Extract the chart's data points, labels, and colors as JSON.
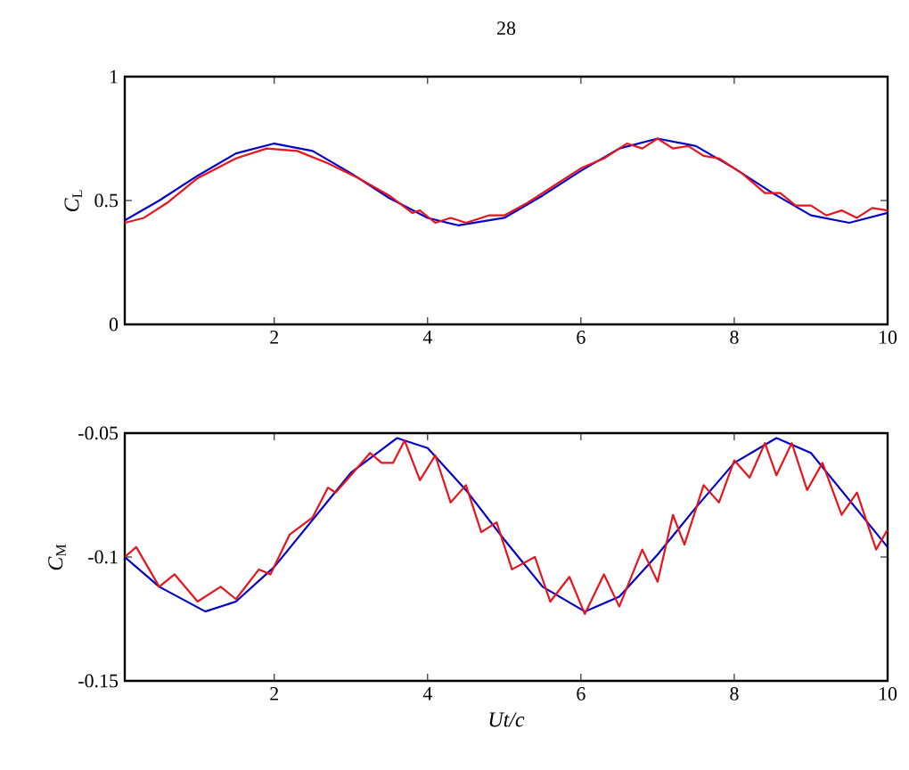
{
  "chart_data": [
    {
      "type": "line",
      "title": "28",
      "ylabel": "*C*$_{L}$",
      "xlim": [
        0.05,
        10
      ],
      "ylim": [
        0,
        1
      ],
      "xticks": [
        2,
        4,
        6,
        8,
        10
      ],
      "yticks": [
        0,
        0.5,
        1
      ],
      "series": [
        {
          "color": "#0000cc",
          "x": [
            0.05,
            0.5,
            1.0,
            1.5,
            2.0,
            2.5,
            3.0,
            3.5,
            4.0,
            4.4,
            5.0,
            5.5,
            6.0,
            6.5,
            7.0,
            7.5,
            8.0,
            8.5,
            9.0,
            9.5,
            10
          ],
          "values": [
            0.42,
            0.5,
            0.6,
            0.69,
            0.73,
            0.7,
            0.61,
            0.51,
            0.43,
            0.4,
            0.43,
            0.52,
            0.62,
            0.71,
            0.75,
            0.72,
            0.63,
            0.53,
            0.44,
            0.41,
            0.45
          ]
        },
        {
          "color": "#e8141c",
          "x": [
            0.05,
            0.3,
            0.6,
            1.0,
            1.5,
            1.9,
            2.3,
            2.7,
            3.1,
            3.5,
            3.8,
            3.9,
            4.1,
            4.3,
            4.5,
            4.8,
            5.0,
            5.3,
            5.7,
            6.0,
            6.3,
            6.6,
            6.8,
            7.0,
            7.2,
            7.4,
            7.6,
            7.8,
            8.1,
            8.4,
            8.6,
            8.8,
            9.0,
            9.2,
            9.4,
            9.6,
            9.8,
            10
          ],
          "values": [
            0.41,
            0.43,
            0.49,
            0.59,
            0.67,
            0.71,
            0.7,
            0.65,
            0.59,
            0.52,
            0.45,
            0.46,
            0.41,
            0.43,
            0.41,
            0.44,
            0.44,
            0.49,
            0.57,
            0.63,
            0.67,
            0.73,
            0.71,
            0.75,
            0.71,
            0.72,
            0.68,
            0.67,
            0.61,
            0.53,
            0.53,
            0.48,
            0.48,
            0.44,
            0.46,
            0.43,
            0.47,
            0.46
          ]
        }
      ]
    },
    {
      "type": "line",
      "ylabel": "*C*$_{M}$",
      "xlabel": "*Ut/c*",
      "xlim": [
        0.05,
        10
      ],
      "ylim": [
        -0.15,
        -0.05
      ],
      "xticks": [
        2,
        4,
        6,
        8,
        10
      ],
      "yticks": [
        -0.15,
        -0.1,
        -0.05
      ],
      "series": [
        {
          "color": "#0000cc",
          "x": [
            0.05,
            0.5,
            1.1,
            1.5,
            2.0,
            2.5,
            3.0,
            3.6,
            4.0,
            4.5,
            5.0,
            5.5,
            6.05,
            6.5,
            7.0,
            7.5,
            8.0,
            8.55,
            9.0,
            9.5,
            10
          ],
          "values": [
            -0.1,
            -0.112,
            -0.122,
            -0.118,
            -0.104,
            -0.085,
            -0.066,
            -0.052,
            -0.056,
            -0.073,
            -0.093,
            -0.112,
            -0.122,
            -0.116,
            -0.099,
            -0.08,
            -0.062,
            -0.052,
            -0.058,
            -0.077,
            -0.096
          ]
        },
        {
          "color": "#e8141c",
          "x": [
            0.05,
            0.2,
            0.5,
            0.7,
            1.0,
            1.3,
            1.5,
            1.8,
            1.95,
            2.2,
            2.5,
            2.7,
            2.8,
            3.0,
            3.25,
            3.4,
            3.55,
            3.7,
            3.9,
            4.1,
            4.3,
            4.5,
            4.7,
            4.9,
            5.1,
            5.4,
            5.6,
            5.85,
            6.05,
            6.3,
            6.5,
            6.8,
            7.0,
            7.2,
            7.35,
            7.6,
            7.8,
            8.0,
            8.2,
            8.4,
            8.55,
            8.75,
            8.95,
            9.15,
            9.4,
            9.6,
            9.85,
            10
          ],
          "values": [
            -0.1,
            -0.096,
            -0.112,
            -0.107,
            -0.118,
            -0.112,
            -0.117,
            -0.105,
            -0.107,
            -0.091,
            -0.084,
            -0.072,
            -0.074,
            -0.067,
            -0.058,
            -0.062,
            -0.062,
            -0.053,
            -0.069,
            -0.059,
            -0.078,
            -0.071,
            -0.09,
            -0.086,
            -0.105,
            -0.1,
            -0.118,
            -0.108,
            -0.123,
            -0.107,
            -0.12,
            -0.097,
            -0.11,
            -0.083,
            -0.095,
            -0.071,
            -0.078,
            -0.061,
            -0.068,
            -0.054,
            -0.067,
            -0.054,
            -0.073,
            -0.062,
            -0.083,
            -0.074,
            -0.097,
            -0.089
          ]
        }
      ]
    }
  ]
}
